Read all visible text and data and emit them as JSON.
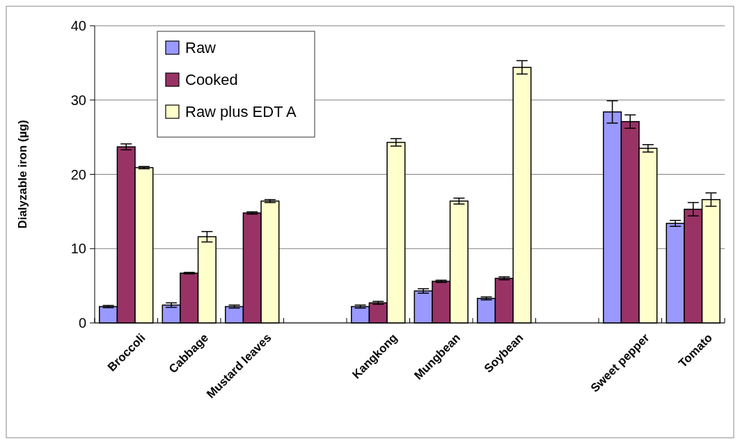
{
  "chart_data": {
    "type": "bar",
    "ylabel": "Dialyzable iron (µg)",
    "categories": [
      "Broccoli",
      "Cabbage",
      "Mustard leaves",
      null,
      "Kangkong",
      "Mungbean",
      "Soybean",
      null,
      "Sweet pepper",
      "Tomato"
    ],
    "ylim": [
      0,
      40
    ],
    "yticks": [
      0,
      10,
      20,
      30,
      40
    ],
    "grid": "y",
    "legend": "top left",
    "series": [
      {
        "name": "Raw",
        "color": "#9999ff",
        "values": [
          2.2,
          2.4,
          2.2,
          null,
          2.2,
          4.3,
          3.3,
          null,
          28.4,
          13.4
        ],
        "errors": [
          0.15,
          0.3,
          0.2,
          null,
          0.2,
          0.3,
          0.2,
          null,
          1.5,
          0.4
        ]
      },
      {
        "name": "Cooked",
        "color": "#993366",
        "values": [
          23.7,
          6.7,
          14.8,
          null,
          2.7,
          5.6,
          6.0,
          null,
          27.1,
          15.3
        ],
        "errors": [
          0.4,
          0.1,
          0.15,
          null,
          0.2,
          0.15,
          0.2,
          null,
          0.9,
          0.9
        ]
      },
      {
        "name": "Raw plus EDT A",
        "color": "#ffffcc",
        "values": [
          20.9,
          11.6,
          16.4,
          null,
          24.3,
          16.4,
          34.4,
          null,
          23.5,
          16.6
        ],
        "errors": [
          0.15,
          0.7,
          0.2,
          null,
          0.5,
          0.4,
          0.9,
          null,
          0.5,
          0.9
        ]
      }
    ]
  }
}
